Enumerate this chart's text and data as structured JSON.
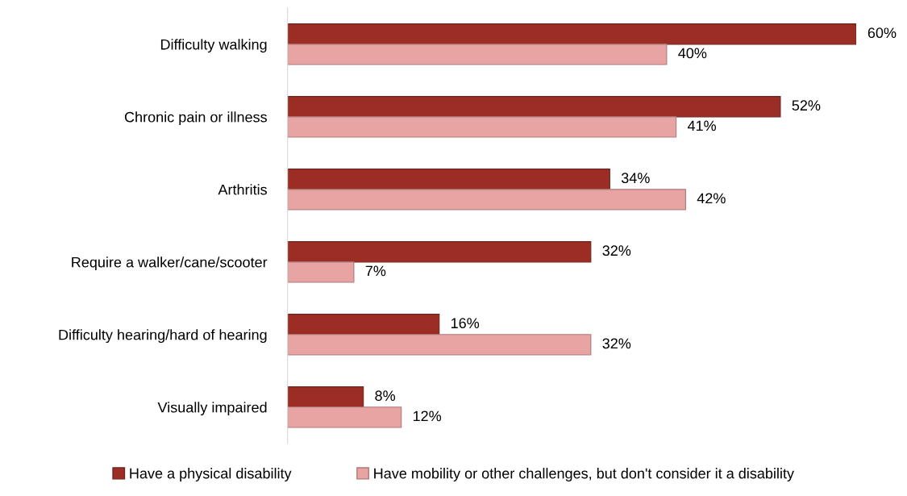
{
  "chart_data": {
    "type": "bar",
    "orientation": "horizontal",
    "categories": [
      "Difficulty walking",
      "Chronic pain or illness",
      "Arthritis",
      "Require a walker/cane/scooter",
      "Difficulty hearing/hard of hearing",
      "Visually impaired"
    ],
    "series": [
      {
        "name": "Have a physical disability",
        "color": "#9b2d25",
        "values": [
          60,
          52,
          34,
          32,
          16,
          8
        ],
        "value_labels": [
          "60%",
          "52%",
          "34%",
          "32%",
          "16%",
          "8%"
        ]
      },
      {
        "name": "Have mobility or other challenges, but don't consider it a disability",
        "color": "#e8a3a3",
        "values": [
          40,
          41,
          42,
          7,
          32,
          12
        ],
        "value_labels": [
          "40%",
          "41%",
          "42%",
          "7%",
          "32%",
          "12%"
        ]
      }
    ],
    "tick_labels": "y",
    "legend": "bottom"
  }
}
